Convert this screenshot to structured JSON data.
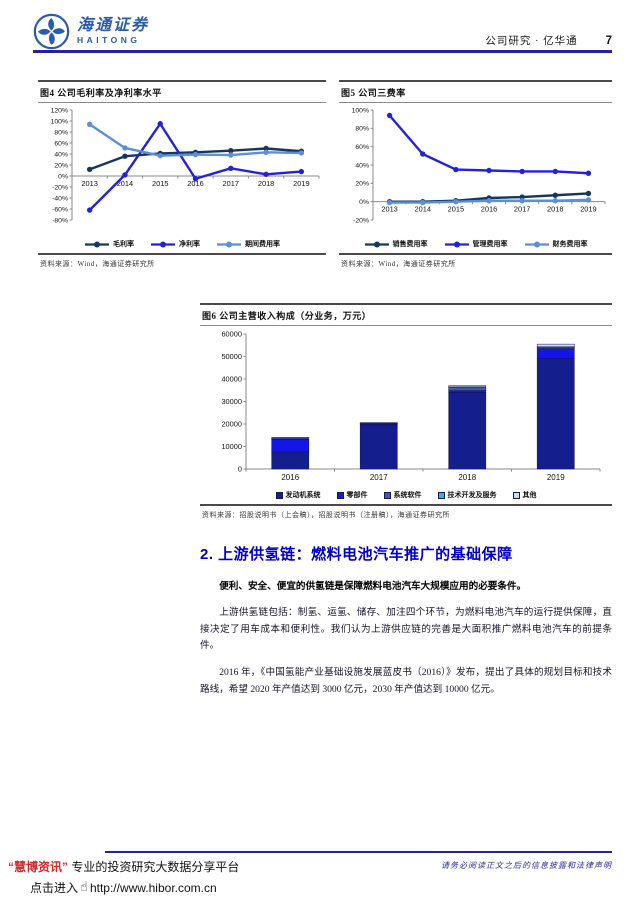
{
  "header": {
    "brand_cn": "海通证券",
    "brand_en": "HAITONG",
    "doc_type": "公司研究 · 亿华通",
    "page_number": "7"
  },
  "figures": [
    {
      "source": "资料来源：Wind，海通证券研究所"
    },
    {
      "source": "资料来源：Wind，海通证券研究所"
    },
    {
      "source": "资料来源：招股说明书（上会稿），招股说明书（注册稿），海通证券研究所"
    }
  ],
  "chart_data": [
    {
      "type": "line",
      "title": "图4  公司毛利率及净利率水平",
      "categories": [
        "2013",
        "2014",
        "2015",
        "2016",
        "2017",
        "2018",
        "2019"
      ],
      "ylim": [
        -80,
        120
      ],
      "ytick": 20,
      "yformat": "percent",
      "grid": false,
      "legend_position": "bottom",
      "series": [
        {
          "name": "毛利率",
          "color": "#17365D",
          "values": [
            12,
            36,
            41,
            43,
            46,
            50,
            45
          ]
        },
        {
          "name": "净利率",
          "color": "#2222DD",
          "values": [
            -62,
            2,
            95,
            -5,
            14,
            3,
            8
          ]
        },
        {
          "name": "期间费用率",
          "color": "#5B8FD6",
          "values": [
            94,
            51,
            37,
            39,
            38,
            43,
            42
          ]
        }
      ]
    },
    {
      "type": "line",
      "title": "图5  公司三费率",
      "categories": [
        "2013",
        "2014",
        "2015",
        "2016",
        "2017",
        "2018",
        "2019"
      ],
      "ylim": [
        -20,
        100
      ],
      "ytick": 20,
      "yformat": "percent",
      "grid": false,
      "legend_position": "bottom",
      "series": [
        {
          "name": "销售费用率",
          "color": "#17365D",
          "values": [
            0,
            0,
            1,
            4,
            5,
            7,
            9
          ]
        },
        {
          "name": "管理费用率",
          "color": "#2222DD",
          "values": [
            94,
            52,
            35,
            34,
            33,
            33,
            31
          ]
        },
        {
          "name": "财务费用率",
          "color": "#5B8FD6",
          "values": [
            -1,
            -1,
            0,
            1,
            1,
            1,
            2
          ]
        }
      ]
    },
    {
      "type": "bar",
      "stacked": true,
      "title": "图6  公司主营收入构成（分业务，万元）",
      "categories": [
        "2016",
        "2017",
        "2018",
        "2019"
      ],
      "ylim": [
        0,
        60000
      ],
      "ytick": 10000,
      "yformat": "plain",
      "grid": false,
      "legend_position": "bottom",
      "series": [
        {
          "name": "发动机系统",
          "color": "#141E8C",
          "values": [
            7600,
            19600,
            34000,
            49000
          ]
        },
        {
          "name": "零部件",
          "color": "#1515E6",
          "values": [
            5600,
            400,
            800,
            4500
          ]
        },
        {
          "name": "系统软件",
          "color": "#3E5BA9",
          "values": [
            600,
            300,
            1600,
            700
          ]
        },
        {
          "name": "技术开发及服务",
          "color": "#2EB8C9",
          "values": [
            100,
            100,
            100,
            100
          ]
        },
        {
          "name": "其他",
          "color": "#C9DCF2",
          "values": [
            100,
            200,
            500,
            1200
          ]
        }
      ]
    }
  ],
  "section": {
    "heading": "2. 上游供氢链：燃料电池汽车推广的基础保障",
    "lead": "便利、安全、便宜的供氢链是保障燃料电池汽车大规模应用的必要条件。",
    "para1": "上游供氢链包括：制氢、运氢、储存、加注四个环节，为燃料电池汽车的运行提供保障，直接决定了用车成本和便利性。我们认为上游供应链的完善是大面积推广燃料电池汽车的前提条件。",
    "para2": "2016 年，《中国氢能产业基础设施发展蓝皮书（2016）》发布，提出了具体的规划目标和技术路线，希望 2020 年产值达到 3000 亿元，2030 年产值达到 10000 亿元。"
  },
  "footer": {
    "brand": "“慧博资讯”",
    "tagline": " 专业的投资研究大数据分享平台",
    "click_text": "点击进入",
    "hand_icon": "☝",
    "url": "http://www.hibor.com.cn",
    "disclaimer": "请务必阅读正文之后的信息披露和法律声明"
  },
  "colors": {
    "rule_blue": "#23239B",
    "heading_blue": "#0000C8",
    "brand_blue": "#2A5CAE",
    "footer_red": "#D42A2A"
  }
}
